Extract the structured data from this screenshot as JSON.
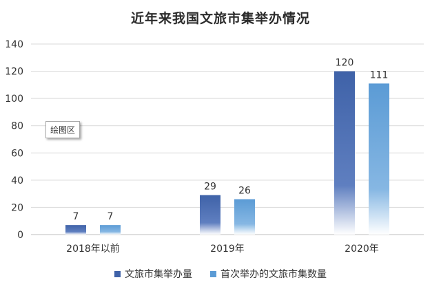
{
  "chart_data": {
    "type": "bar",
    "title": "近年来我国文旅市集举办情况",
    "categories": [
      "2018年以前",
      "2019年",
      "2020年"
    ],
    "series": [
      {
        "name": "文旅市集举办量",
        "values": [
          7,
          29,
          120
        ],
        "color": "#3f62a8"
      },
      {
        "name": "首次举办的文旅市集数量",
        "values": [
          7,
          26,
          111
        ],
        "color": "#5b9bd5"
      }
    ],
    "ylim": [
      0,
      140
    ],
    "yticks": [
      0,
      20,
      40,
      60,
      80,
      100,
      120,
      140
    ],
    "grid": true,
    "legend": "bottom",
    "annotation": "绘图区"
  }
}
